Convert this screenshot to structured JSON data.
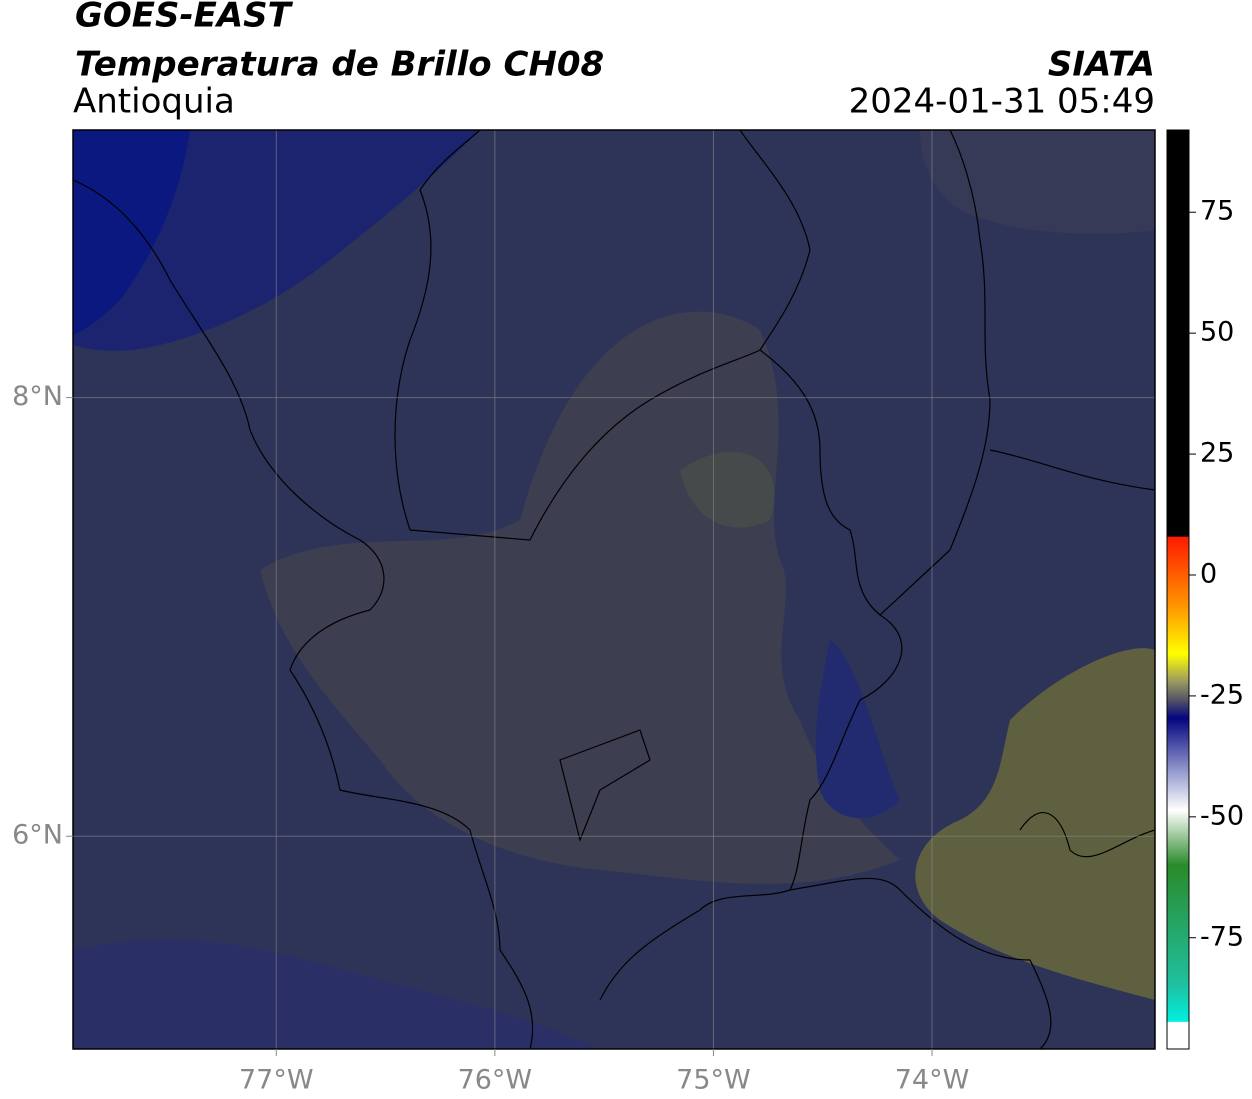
{
  "header": {
    "satellite": "GOES-EAST",
    "product": "Temperatura de Brillo CH08",
    "region": "Antioquia",
    "agency": "SIATA",
    "timestamp": "2024-01-31 05:49"
  },
  "map": {
    "lon_range": [
      -77.93,
      -72.98
    ],
    "lat_range": [
      5.03,
      9.22
    ],
    "lon_ticks": [
      {
        "value": -77,
        "label": "77°W"
      },
      {
        "value": -76,
        "label": "76°W"
      },
      {
        "value": -75,
        "label": "75°W"
      },
      {
        "value": -74,
        "label": "74°W"
      }
    ],
    "lat_ticks": [
      {
        "value": 8,
        "label": "8°N"
      },
      {
        "value": 6,
        "label": "6°N"
      }
    ],
    "grid": true
  },
  "colorbar": {
    "range": [
      -98,
      92
    ],
    "ticks": [
      75,
      50,
      25,
      0,
      -25,
      -50,
      -75
    ]
  }
}
